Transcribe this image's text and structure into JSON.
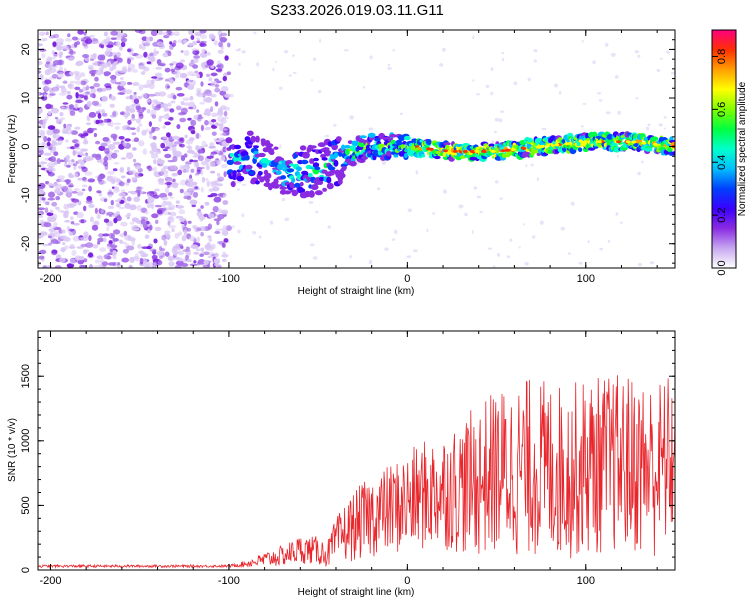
{
  "chart_data": [
    {
      "type": "heatmap",
      "title": "S233.2026.019.03.11.G11",
      "xlabel": "Height of straight line (km)",
      "ylabel": "Frequency (Hz)",
      "xlim": [
        -207,
        150
      ],
      "ylim": [
        -25,
        24
      ],
      "xticks": [
        -200,
        -100,
        0,
        100
      ],
      "yticks": [
        -20,
        -10,
        0,
        10,
        20
      ],
      "colorbar": {
        "label": "Normalized spectral amplitude",
        "range": [
          0,
          0.9
        ],
        "ticks": [
          0.0,
          0.2,
          0.4,
          0.6,
          0.8
        ],
        "colors": [
          "#ffffff",
          "#c7a8f0",
          "#8a2be2",
          "#3a00ff",
          "#0040ff",
          "#00bfff",
          "#00ffcc",
          "#00ff40",
          "#80ff00",
          "#ffff00",
          "#ffa000",
          "#ff3000",
          "#ff0080"
        ]
      },
      "ridge": [
        {
          "x": -100,
          "f": -3
        },
        {
          "x": -90,
          "f": -2
        },
        {
          "x": -80,
          "f": -3
        },
        {
          "x": -70,
          "f": -5
        },
        {
          "x": -60,
          "f": -5
        },
        {
          "x": -50,
          "f": -5
        },
        {
          "x": -40,
          "f": -3
        },
        {
          "x": -30,
          "f": -1
        },
        {
          "x": -20,
          "f": 0
        },
        {
          "x": -10,
          "f": 0
        },
        {
          "x": 0,
          "f": 0
        },
        {
          "x": 25,
          "f": -1
        },
        {
          "x": 50,
          "f": -1
        },
        {
          "x": 75,
          "f": 0
        },
        {
          "x": 100,
          "f": 1
        },
        {
          "x": 125,
          "f": 1
        },
        {
          "x": 150,
          "f": 0
        }
      ],
      "noise_region": [
        -207,
        -100
      ]
    },
    {
      "type": "line",
      "xlabel": "Height of straight line (km)",
      "ylabel": "SNR (10 * v/v)",
      "xlim": [
        -207,
        150
      ],
      "ylim": [
        0,
        1850
      ],
      "xticks": [
        -200,
        -100,
        0,
        100
      ],
      "yticks": [
        0,
        500,
        1000,
        1500
      ],
      "series": [
        {
          "name": "SNR",
          "color": "#e8262c",
          "envelope": [
            {
              "x": -207,
              "mean": 30,
              "amp": 10
            },
            {
              "x": -100,
              "mean": 30,
              "amp": 10
            },
            {
              "x": -90,
              "mean": 50,
              "amp": 25
            },
            {
              "x": -80,
              "mean": 80,
              "amp": 60
            },
            {
              "x": -70,
              "mean": 110,
              "amp": 80
            },
            {
              "x": -60,
              "mean": 160,
              "amp": 110
            },
            {
              "x": -50,
              "mean": 150,
              "amp": 110
            },
            {
              "x": -45,
              "mean": 120,
              "amp": 100
            },
            {
              "x": -40,
              "mean": 220,
              "amp": 180
            },
            {
              "x": -35,
              "mean": 290,
              "amp": 230
            },
            {
              "x": -30,
              "mean": 340,
              "amp": 270
            },
            {
              "x": -20,
              "mean": 420,
              "amp": 320
            },
            {
              "x": -10,
              "mean": 470,
              "amp": 350
            },
            {
              "x": 0,
              "mean": 520,
              "amp": 400
            },
            {
              "x": 10,
              "mean": 580,
              "amp": 430
            },
            {
              "x": 20,
              "mean": 620,
              "amp": 460
            },
            {
              "x": 30,
              "mean": 640,
              "amp": 520
            },
            {
              "x": 40,
              "mean": 700,
              "amp": 600
            },
            {
              "x": 50,
              "mean": 760,
              "amp": 650
            },
            {
              "x": 60,
              "mean": 780,
              "amp": 680
            },
            {
              "x": 70,
              "mean": 800,
              "amp": 700
            },
            {
              "x": 80,
              "mean": 780,
              "amp": 690
            },
            {
              "x": 90,
              "mean": 760,
              "amp": 680
            },
            {
              "x": 100,
              "mean": 800,
              "amp": 700
            },
            {
              "x": 110,
              "mean": 820,
              "amp": 700
            },
            {
              "x": 120,
              "mean": 830,
              "amp": 700
            },
            {
              "x": 130,
              "mean": 810,
              "amp": 700
            },
            {
              "x": 140,
              "mean": 780,
              "amp": 700
            },
            {
              "x": 150,
              "mean": 900,
              "amp": 650
            }
          ]
        }
      ]
    }
  ]
}
